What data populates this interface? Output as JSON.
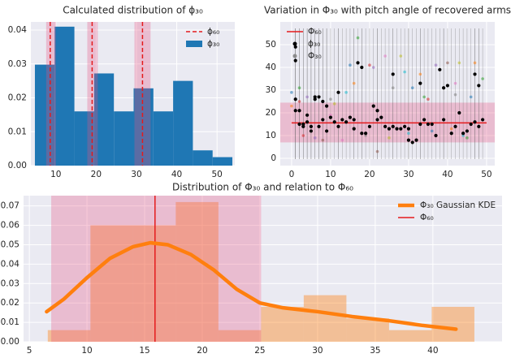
{
  "chart_data": [
    {
      "type": "histogram",
      "title": "Calculated distribution of ϕ₃₀",
      "name": "ϕ₃₀",
      "color": "#1f77b4",
      "bins": [
        4.8,
        9.7,
        14.6,
        19.5,
        24.4,
        29.3,
        34.2,
        39.1,
        44.0,
        48.9,
        53.8
      ],
      "values": [
        0.0298,
        0.041,
        0.016,
        0.0272,
        0.016,
        0.0228,
        0.016,
        0.025,
        0.0045,
        0.0025
      ],
      "vline": {
        "name": "ϕ₆₀",
        "color": "#e41a1c",
        "style": "dashed",
        "values": [
          8.6,
          19.0,
          31.5
        ],
        "bands": [
          [
            7.6,
            10.0
          ],
          [
            17.8,
            20.4
          ],
          [
            29.5,
            33.5
          ]
        ],
        "band_color": "#e75480"
      },
      "xlim": [
        3.8,
        54.4
      ],
      "xticks": [
        10,
        20,
        30,
        40,
        50
      ],
      "ylim": [
        0,
        0.0424
      ],
      "yticks": [
        {
          "value": 0,
          "label": "0.00"
        },
        {
          "value": 0.01,
          "label": "0.01"
        },
        {
          "value": 0.02,
          "label": "0.02"
        },
        {
          "value": 0.03,
          "label": "0.03"
        },
        {
          "value": 0.04,
          "label": "0.04"
        }
      ],
      "grid": true,
      "legend": "upper right"
    },
    {
      "type": "scatter",
      "title": "Variation in Φ₃₀ with pitch angle of recovered arms",
      "hline": {
        "name": "Φ₆₀",
        "color": "#e41a1c",
        "value": 15.6,
        "band": [
          7,
          24.5
        ],
        "band_color": "#e75480"
      },
      "series": [
        {
          "name": "ϕ₃₀",
          "color": "#000000",
          "x": [
            1,
            1,
            1,
            1,
            2,
            2,
            3,
            3,
            4,
            4,
            5,
            5,
            6,
            6,
            7,
            7,
            8,
            8,
            9,
            9,
            10,
            11,
            12,
            12,
            13,
            14,
            15,
            16,
            16,
            17,
            18,
            18,
            19,
            20,
            21,
            22,
            22,
            23,
            24,
            25,
            26,
            26,
            27,
            28,
            29,
            30,
            30,
            31,
            32,
            33,
            33,
            34,
            35,
            36,
            37,
            38,
            39,
            39,
            40,
            41,
            42,
            43,
            44,
            45,
            46,
            47,
            47,
            48,
            48,
            49
          ],
          "values": [
            49,
            43,
            26,
            21,
            21,
            15,
            15,
            14,
            16,
            19,
            12,
            14,
            26,
            27,
            27,
            14,
            25,
            17,
            23,
            12,
            18,
            16,
            29,
            14,
            17,
            16,
            18,
            13,
            17,
            42,
            40,
            11,
            11,
            14,
            23,
            21,
            17,
            18,
            14,
            13,
            37,
            14,
            13,
            13,
            14,
            13,
            8,
            7,
            8,
            33,
            15,
            17,
            15,
            15,
            10,
            39,
            31,
            17,
            32,
            11,
            14,
            20,
            11,
            12,
            15,
            37,
            16,
            32,
            14,
            17
          ]
        },
        {
          "name": "Φ₃₀",
          "color": "#8c8c8c",
          "colors": [
            "#1f77b4",
            "#ff7f0e",
            "#2ca02c",
            "#d62728",
            "#9467bd",
            "#8c564b",
            "#e377c2",
            "#7f7f7f",
            "#bcbd22",
            "#17becf"
          ],
          "x": [
            0,
            0,
            2,
            2,
            4,
            8,
            10,
            10,
            11,
            14,
            15,
            16,
            17,
            20,
            21,
            22,
            24,
            26,
            28,
            29,
            31,
            33,
            34,
            35,
            37,
            40,
            42,
            42,
            43,
            44,
            46,
            47,
            49,
            3,
            6,
            9,
            13,
            19,
            25,
            30,
            36,
            41,
            45
          ],
          "values": [
            29,
            23,
            31,
            25,
            27,
            8,
            19,
            26,
            24,
            29,
            41,
            33,
            53,
            41,
            40,
            3,
            45,
            31,
            45,
            38,
            31,
            37,
            27,
            26,
            41,
            42,
            33,
            28,
            42,
            10,
            27,
            42,
            35,
            10,
            9,
            12,
            8,
            10,
            9,
            11,
            12,
            13,
            9
          ]
        }
      ],
      "xlim": [
        -2.9,
        52.1
      ],
      "xticks": [
        0,
        10,
        20,
        30,
        40,
        50
      ],
      "ylim": [
        -3.2,
        60
      ],
      "yticks": [
        0,
        10,
        20,
        30,
        40,
        50
      ],
      "grid": true,
      "legend": "upper left"
    },
    {
      "type": "histogram",
      "title": "Distribution of Φ₃₀ and relation to Φ₆₀",
      "color": "#ff7f0e",
      "bins": [
        6.6,
        10.3,
        14.0,
        17.7,
        21.4,
        25.1,
        28.8,
        32.5,
        36.2,
        39.9,
        43.6
      ],
      "values": [
        0.006,
        0.06,
        0.06,
        0.072,
        0.006,
        0.018,
        0.024,
        0.012,
        0.006,
        0.018
      ],
      "vline": {
        "name": "Φ₆₀",
        "color": "#e41a1c",
        "style": "solid",
        "values": [
          15.9
        ],
        "bands": [
          [
            6.9,
            25.1
          ]
        ],
        "band_color": "#e75480"
      },
      "kde": {
        "name": "Φ₃₀ Gaussian KDE",
        "color": "#ff7f0e",
        "x": [
          6.5,
          8,
          10,
          12,
          14,
          15.5,
          17,
          19,
          21,
          23,
          25,
          27,
          30,
          33,
          36,
          39,
          42
        ],
        "values": [
          0.0155,
          0.022,
          0.033,
          0.043,
          0.049,
          0.051,
          0.05,
          0.045,
          0.037,
          0.027,
          0.02,
          0.0175,
          0.0155,
          0.013,
          0.011,
          0.0085,
          0.0065
        ]
      },
      "xlim": [
        4.5,
        46
      ],
      "xticks": [
        5,
        10,
        15,
        20,
        25,
        30,
        35,
        40
      ],
      "ylim": [
        0,
        0.0753
      ],
      "yticks": [
        {
          "value": 0,
          "label": "0.00"
        },
        {
          "value": 0.01,
          "label": "0.01"
        },
        {
          "value": 0.02,
          "label": "0.02"
        },
        {
          "value": 0.03,
          "label": "0.03"
        },
        {
          "value": 0.04,
          "label": "0.04"
        },
        {
          "value": 0.05,
          "label": "0.05"
        },
        {
          "value": 0.06,
          "label": "0.06"
        },
        {
          "value": 0.07,
          "label": "0.07"
        }
      ],
      "grid": true,
      "legend": "upper right"
    }
  ]
}
